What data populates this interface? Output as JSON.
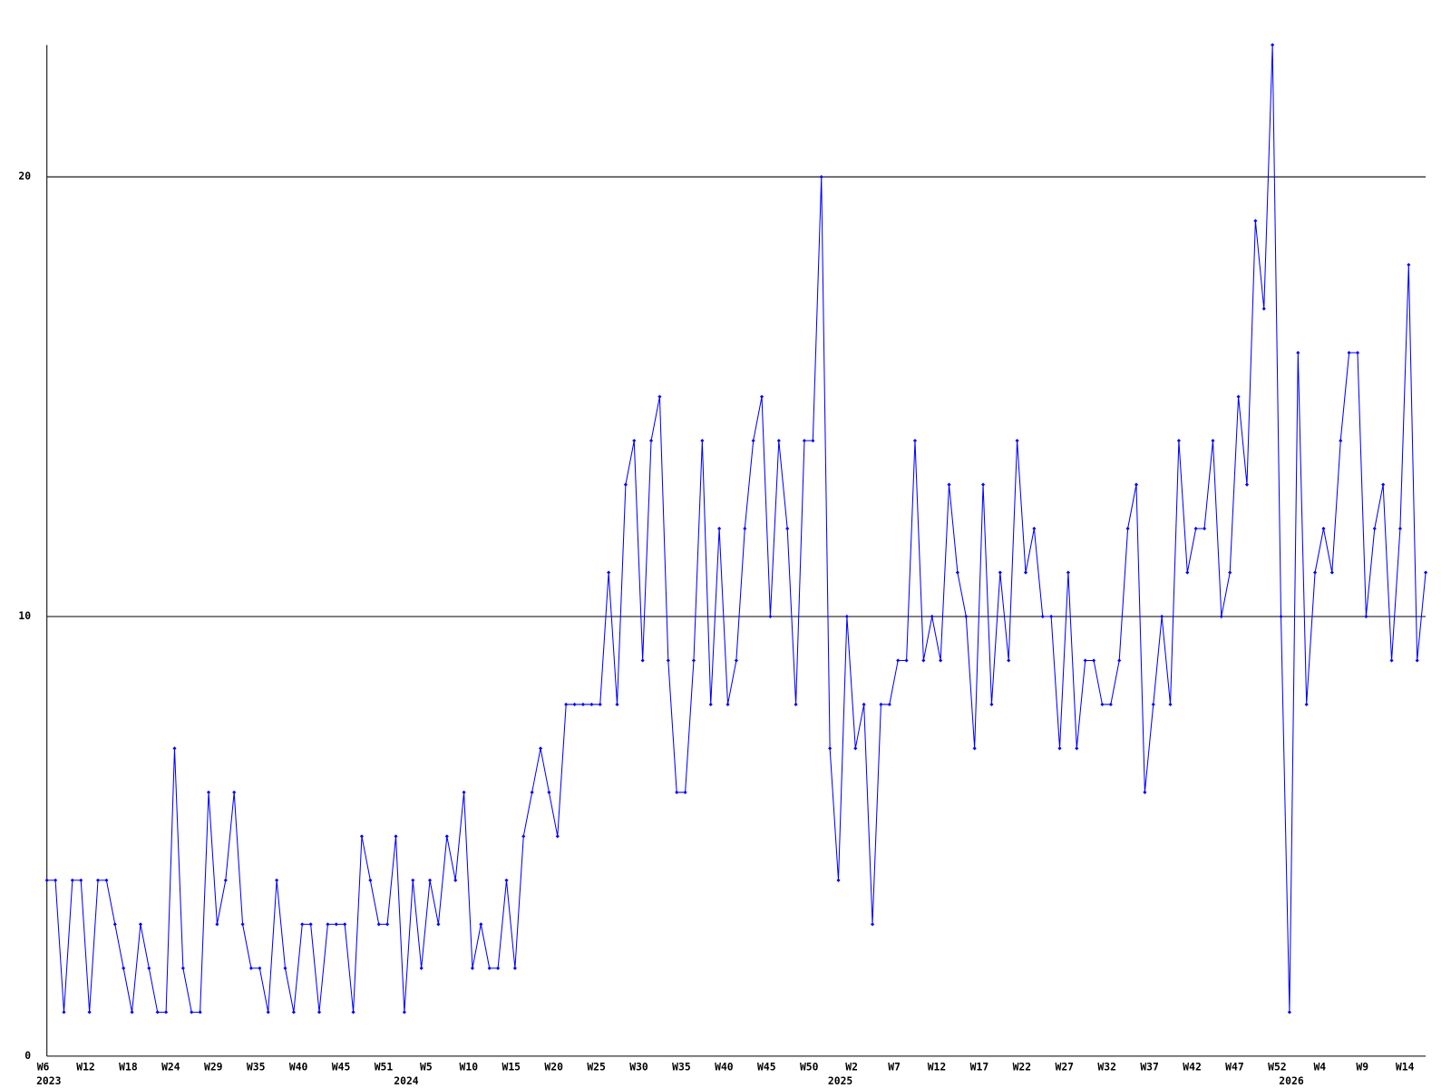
{
  "chart_data": {
    "type": "line",
    "color": "#0000ff",
    "grid": true,
    "ylim": [
      0,
      23
    ],
    "yticks": [
      0,
      10,
      20
    ],
    "categories": [
      "W6",
      null,
      null,
      null,
      null,
      "W12",
      null,
      null,
      null,
      null,
      "W18",
      null,
      null,
      null,
      null,
      "W24",
      null,
      null,
      null,
      null,
      "W29",
      null,
      null,
      null,
      null,
      "W35",
      null,
      null,
      null,
      null,
      "W40",
      null,
      null,
      null,
      null,
      "W45",
      null,
      null,
      null,
      null,
      "W51",
      null,
      null,
      null,
      null,
      "W5",
      null,
      null,
      null,
      null,
      "W10",
      null,
      null,
      null,
      null,
      "W15",
      null,
      null,
      null,
      null,
      "W20",
      null,
      null,
      null,
      null,
      "W25",
      null,
      null,
      null,
      null,
      "W30",
      null,
      null,
      null,
      null,
      "W35",
      null,
      null,
      null,
      null,
      "W40",
      null,
      null,
      null,
      null,
      "W45",
      null,
      null,
      null,
      null,
      "W50",
      null,
      null,
      null,
      null,
      "W2",
      null,
      null,
      null,
      null,
      "W7",
      null,
      null,
      null,
      null,
      "W12",
      null,
      null,
      null,
      null,
      "W17",
      null,
      null,
      null,
      null,
      "W22",
      null,
      null,
      null,
      null,
      "W27",
      null,
      null,
      null,
      null,
      "W32",
      null,
      null,
      null,
      null,
      "W37",
      null,
      null,
      null,
      null,
      "W42",
      null,
      null,
      null,
      null,
      "W47",
      null,
      null,
      null,
      null,
      "W52",
      null,
      null,
      null,
      null,
      "W4",
      null,
      null,
      null,
      null,
      "W9",
      null,
      null,
      null,
      null,
      "W14",
      null,
      null
    ],
    "years": [
      "2023",
      null,
      null,
      null,
      null,
      null,
      null,
      null,
      null,
      null,
      null,
      null,
      null,
      null,
      null,
      null,
      null,
      null,
      null,
      null,
      null,
      null,
      null,
      null,
      null,
      null,
      null,
      null,
      null,
      null,
      null,
      null,
      null,
      null,
      null,
      null,
      null,
      null,
      null,
      null,
      null,
      null,
      "2024",
      null,
      null,
      null,
      null,
      null,
      null,
      null,
      null,
      null,
      null,
      null,
      null,
      null,
      null,
      null,
      null,
      null,
      null,
      null,
      null,
      null,
      null,
      null,
      null,
      null,
      null,
      null,
      null,
      null,
      null,
      null,
      null,
      null,
      null,
      null,
      null,
      null,
      null,
      null,
      null,
      null,
      null,
      null,
      null,
      null,
      null,
      null,
      null,
      null,
      null,
      "2025",
      null,
      null,
      null,
      null,
      null,
      null,
      null,
      null,
      null,
      null,
      null,
      null,
      null,
      null,
      null,
      null,
      null,
      null,
      null,
      null,
      null,
      null,
      null,
      null,
      null,
      null,
      null,
      null,
      null,
      null,
      null,
      null,
      null,
      null,
      null,
      null,
      null,
      null,
      null,
      null,
      null,
      null,
      null,
      null,
      null,
      null,
      null,
      null,
      null,
      null,
      null,
      null,
      "2026",
      null,
      null,
      null,
      null,
      null,
      null,
      null,
      null,
      null,
      null,
      null,
      null,
      null,
      null,
      null,
      null
    ],
    "values": [
      4,
      4,
      1,
      4,
      4,
      1,
      4,
      4,
      3,
      2,
      1,
      3,
      2,
      1,
      1,
      7,
      2,
      1,
      1,
      6,
      3,
      4,
      6,
      3,
      2,
      2,
      1,
      4,
      2,
      1,
      3,
      3,
      1,
      3,
      3,
      3,
      1,
      5,
      4,
      3,
      3,
      5,
      1,
      4,
      2,
      4,
      3,
      5,
      4,
      6,
      2,
      3,
      2,
      2,
      4,
      2,
      5,
      6,
      7,
      6,
      5,
      8,
      8,
      8,
      8,
      8,
      11,
      8,
      13,
      14,
      9,
      14,
      15,
      9,
      6,
      6,
      9,
      14,
      8,
      12,
      8,
      9,
      12,
      14,
      15,
      10,
      14,
      12,
      8,
      14,
      14,
      20,
      7,
      4,
      10,
      7,
      8,
      3,
      8,
      8,
      9,
      9,
      14,
      9,
      10,
      9,
      13,
      11,
      10,
      7,
      13,
      8,
      11,
      9,
      14,
      11,
      12,
      10,
      10,
      7,
      11,
      7,
      9,
      9,
      8,
      8,
      9,
      12,
      13,
      6,
      8,
      10,
      8,
      14,
      11,
      12,
      12,
      14,
      10,
      11,
      15,
      13,
      19,
      17,
      23,
      10,
      1,
      16,
      8,
      11,
      12,
      11,
      14,
      16,
      16,
      10,
      12,
      13,
      9,
      12,
      18,
      9,
      11
    ]
  }
}
